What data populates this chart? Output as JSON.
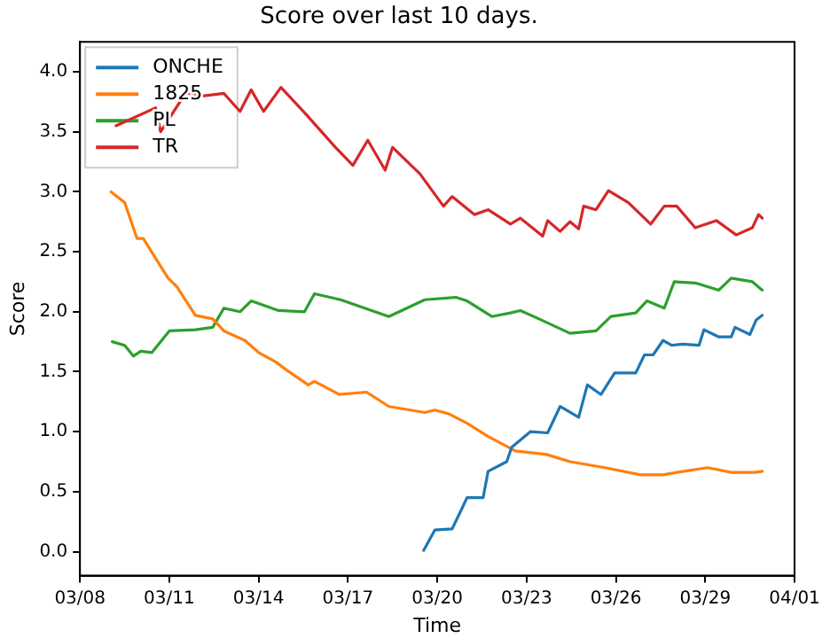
{
  "chart_data": {
    "type": "line",
    "title": "Score over last 10 days.",
    "xlabel": "Time",
    "ylabel": "Score",
    "legend": "top left",
    "grid": false,
    "marker": "none",
    "line_style": "solid",
    "xlim": [
      "--03-08",
      "--04-01"
    ],
    "xticks": [
      {
        "value": "--03-08",
        "label": "03/08"
      },
      {
        "value": "--03-11",
        "label": "03/11"
      },
      {
        "value": "--03-14",
        "label": "03/14"
      },
      {
        "value": "--03-17",
        "label": "03/17"
      },
      {
        "value": "--03-20",
        "label": "03/20"
      },
      {
        "value": "--03-23",
        "label": "03/23"
      },
      {
        "value": "--03-26",
        "label": "03/26"
      },
      {
        "value": "--03-29",
        "label": "03/29"
      },
      {
        "value": "--04-01",
        "label": "04/01"
      }
    ],
    "ylim": [
      -0.2,
      4.25
    ],
    "yticks": [
      {
        "value": 0,
        "label": "0.0"
      },
      {
        "value": 0.5,
        "label": "0.5"
      },
      {
        "value": 1,
        "label": "1.0"
      },
      {
        "value": 1.5,
        "label": "1.5"
      },
      {
        "value": 2,
        "label": "2.0"
      },
      {
        "value": 2.5,
        "label": "2.5"
      },
      {
        "value": 3,
        "label": "3.0"
      },
      {
        "value": 3.5,
        "label": "3.5"
      },
      {
        "value": 4,
        "label": "4.0"
      }
    ],
    "series": [
      {
        "name": "ONCHE",
        "color": "#1f77b4",
        "x": [
          "--03-19T13:00",
          "--03-19T22:00",
          "--03-20T12:00",
          "--03-20T19:00",
          "--03-21T00:00",
          "--03-21T13:00",
          "--03-21T17:00",
          "--03-22T08:00",
          "--03-22T12:00",
          "--03-23T03:00",
          "--03-23T17:00",
          "--03-24T03:00",
          "--03-24T18:00",
          "--03-25T01:00",
          "--03-25T12:00",
          "--03-25T23:00",
          "--03-26T16:00",
          "--03-26T23:00",
          "--03-27T06:00",
          "--03-27T14:00",
          "--03-27T21:00",
          "--03-28T06:00",
          "--03-28T19:00",
          "--03-28T23:00",
          "--03-29T11:00",
          "--03-29T21:00",
          "--03-30T00:00",
          "--03-30T12:00",
          "--03-30T17:00",
          "--03-30T22:00"
        ],
        "values": [
          0.01,
          0.18,
          0.19,
          0.34,
          0.45,
          0.45,
          0.67,
          0.75,
          0.87,
          1.0,
          0.99,
          1.21,
          1.12,
          1.39,
          1.31,
          1.49,
          1.49,
          1.64,
          1.64,
          1.76,
          1.72,
          1.73,
          1.72,
          1.85,
          1.79,
          1.79,
          1.87,
          1.81,
          1.93,
          1.97
        ]
      },
      {
        "name": "1825",
        "color": "#ff7f0e",
        "x": [
          "--03-09T01:00",
          "--03-09T12:00",
          "--03-09T22:00",
          "--03-10T03:00",
          "--03-10T23:00",
          "--03-11T06:00",
          "--03-11T21:00",
          "--03-12T11:00",
          "--03-12T20:00",
          "--03-13T13:00",
          "--03-14T00:00",
          "--03-14T14:00",
          "--03-14T23:00",
          "--03-15T16:00",
          "--03-15T21:00",
          "--03-16T17:00",
          "--03-17T15:00",
          "--03-18T09:00",
          "--03-19T14:00",
          "--03-19T22:00",
          "--03-20T09:00",
          "--03-21T00:00",
          "--03-21T17:00",
          "--03-22T15:00",
          "--03-23T16:00",
          "--03-24T11:00",
          "--03-25T15:00",
          "--03-26T20:00",
          "--03-27T14:00",
          "--03-28T01:00",
          "--03-29T02:00",
          "--03-29T21:00",
          "--03-30T16:00",
          "--03-30T22:00"
        ],
        "values": [
          3.0,
          2.91,
          2.61,
          2.61,
          2.28,
          2.21,
          1.97,
          1.94,
          1.84,
          1.76,
          1.66,
          1.58,
          1.51,
          1.39,
          1.42,
          1.31,
          1.33,
          1.21,
          1.16,
          1.18,
          1.15,
          1.07,
          0.96,
          0.84,
          0.81,
          0.75,
          0.7,
          0.64,
          0.64,
          0.66,
          0.7,
          0.66,
          0.66,
          0.67
        ]
      },
      {
        "name": "PL",
        "color": "#2ca02c",
        "x": [
          "--03-09T02:00",
          "--03-09T12:00",
          "--03-09T19:00",
          "--03-10T01:00",
          "--03-10T10:00",
          "--03-11T00:00",
          "--03-11T21:00",
          "--03-12T11:00",
          "--03-12T20:00",
          "--03-13T09:00",
          "--03-13T18:00",
          "--03-14T16:00",
          "--03-15T13:00",
          "--03-15T21:00",
          "--03-16T18:00",
          "--03-18T09:00",
          "--03-19T14:00",
          "--03-20T15:00",
          "--03-21T00:00",
          "--03-21T20:00",
          "--03-22T11:00",
          "--03-22T19:00",
          "--03-23T10:00",
          "--03-24T11:00",
          "--03-25T08:00",
          "--03-25T20:00",
          "--03-26T16:00",
          "--03-27T01:00",
          "--03-27T15:00",
          "--03-27T23:00",
          "--03-28T16:00",
          "--03-29T11:00",
          "--03-29T21:00",
          "--03-30T14:00",
          "--03-30T22:00"
        ],
        "values": [
          1.75,
          1.72,
          1.63,
          1.67,
          1.66,
          1.84,
          1.85,
          1.87,
          2.03,
          2.0,
          2.09,
          2.01,
          2.0,
          2.15,
          2.1,
          1.96,
          2.1,
          2.12,
          2.09,
          1.96,
          1.99,
          2.01,
          1.94,
          1.82,
          1.84,
          1.96,
          1.99,
          2.09,
          2.03,
          2.25,
          2.24,
          2.18,
          2.28,
          2.25,
          2.18
        ]
      },
      {
        "name": "TR",
        "color": "#d62728",
        "x": [
          "--03-09T05:00",
          "--03-10T13:00",
          "--03-10T17:00",
          "--03-11T13:00",
          "--03-12T04:00",
          "--03-12T20:00",
          "--03-13T09:00",
          "--03-13T18:00",
          "--03-14T04:00",
          "--03-14T18:00",
          "--03-15T13:00",
          "--03-16T14:00",
          "--03-17T04:00",
          "--03-17T16:00",
          "--03-18T06:00",
          "--03-18T12:00",
          "--03-19T10:00",
          "--03-20T05:00",
          "--03-20T12:00",
          "--03-21T06:00",
          "--03-21T17:00",
          "--03-22T11:00",
          "--03-22T19:00",
          "--03-23T13:00",
          "--03-23T17:00",
          "--03-24T03:00",
          "--03-24T11:00",
          "--03-24T18:00",
          "--03-24T22:00",
          "--03-25T08:00",
          "--03-25T18:00",
          "--03-26T10:00",
          "--03-27T04:00",
          "--03-27T15:00",
          "--03-28T01:00",
          "--03-28T16:00",
          "--03-29T09:00",
          "--03-30T01:00",
          "--03-30T14:00",
          "--03-30T19:00",
          "--03-30T22:00"
        ],
        "values": [
          3.55,
          3.7,
          3.5,
          3.82,
          3.8,
          3.82,
          3.67,
          3.85,
          3.67,
          3.87,
          3.66,
          3.37,
          3.22,
          3.43,
          3.18,
          3.37,
          3.15,
          2.88,
          2.96,
          2.81,
          2.85,
          2.73,
          2.78,
          2.63,
          2.76,
          2.67,
          2.75,
          2.69,
          2.88,
          2.85,
          3.01,
          2.91,
          2.73,
          2.88,
          2.88,
          2.7,
          2.76,
          2.64,
          2.7,
          2.81,
          2.78
        ]
      }
    ]
  }
}
